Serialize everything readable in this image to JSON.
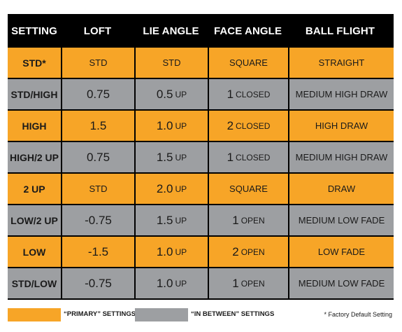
{
  "header": {
    "setting": "SETTING",
    "loft": "LOFT",
    "lie_angle": "LIE ANGLE",
    "face_angle": "FACE ANGLE",
    "ball_flight": "BALL FLIGHT"
  },
  "rows": [
    {
      "type": "primary",
      "setting": "STD*",
      "loft": "STD",
      "lie_num": "STD",
      "lie_unit": "",
      "face_num": "SQUARE",
      "face_unit": "",
      "flight": "STRAIGHT"
    },
    {
      "type": "between",
      "setting": "STD/HIGH",
      "loft": "0.75",
      "lie_num": "0.5",
      "lie_unit": "UP",
      "face_num": "1",
      "face_unit": "CLOSED",
      "flight": "MEDIUM HIGH DRAW"
    },
    {
      "type": "primary",
      "setting": "HIGH",
      "loft": "1.5",
      "lie_num": "1.0",
      "lie_unit": "UP",
      "face_num": "2",
      "face_unit": "CLOSED",
      "flight": "HIGH DRAW"
    },
    {
      "type": "between",
      "setting": "HIGH/2 UP",
      "loft": "0.75",
      "lie_num": "1.5",
      "lie_unit": "UP",
      "face_num": "1",
      "face_unit": "CLOSED",
      "flight": "MEDIUM HIGH DRAW"
    },
    {
      "type": "primary",
      "setting": "2 UP",
      "loft": "STD",
      "lie_num": "2.0",
      "lie_unit": "UP",
      "face_num": "SQUARE",
      "face_unit": "",
      "flight": "DRAW"
    },
    {
      "type": "between",
      "setting": "LOW/2 UP",
      "loft": "-0.75",
      "lie_num": "1.5",
      "lie_unit": "UP",
      "face_num": "1",
      "face_unit": "OPEN",
      "flight": "MEDIUM LOW FADE"
    },
    {
      "type": "primary",
      "setting": "LOW",
      "loft": "-1.5",
      "lie_num": "1.0",
      "lie_unit": "UP",
      "face_num": "2",
      "face_unit": "OPEN",
      "flight": "LOW FADE"
    },
    {
      "type": "between",
      "setting": "STD/LOW",
      "loft": "-0.75",
      "lie_num": "1.0",
      "lie_unit": "UP",
      "face_num": "1",
      "face_unit": "OPEN",
      "flight": "MEDIUM LOW FADE"
    }
  ],
  "legend": {
    "primary_label": "“PRIMARY” SETTINGS",
    "between_label": "“IN BETWEEN” SETTINGS",
    "footnote": "* Factory Default Setting"
  },
  "colors": {
    "primary": "#f7a527",
    "between": "#9d9fa2",
    "header_bg": "#000000"
  }
}
